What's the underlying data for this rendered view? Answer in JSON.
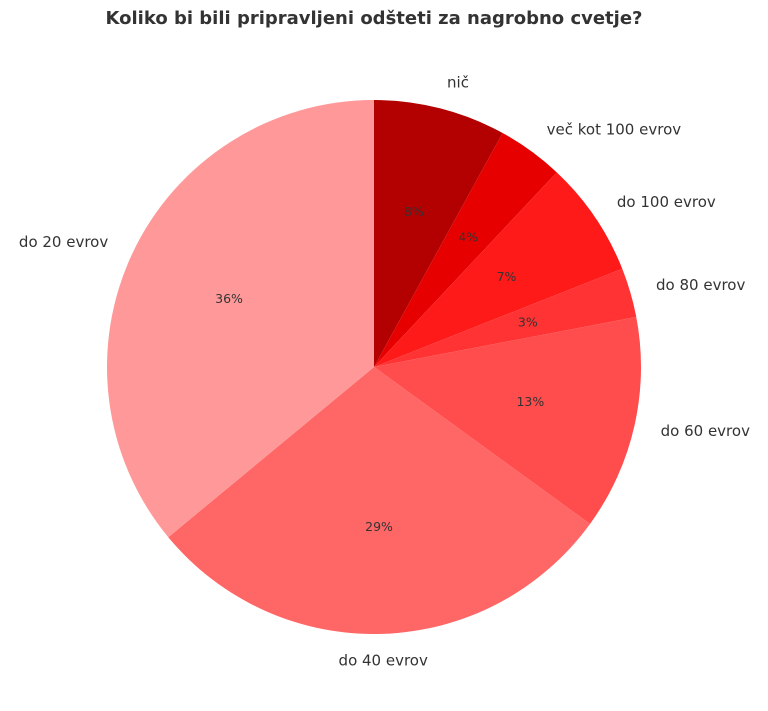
{
  "chart_data": {
    "type": "pie",
    "title": "Koliko bi bili pripravljeni odšteti za nagrobno cvetje?",
    "start_angle_deg": 90,
    "direction": "clockwise",
    "slices": [
      {
        "label": "nič",
        "value": 8,
        "pct_label": "8%",
        "color": "#b30000"
      },
      {
        "label": "več kot 100 evrov",
        "value": 4,
        "pct_label": "4%",
        "color": "#e60000"
      },
      {
        "label": "do 100 evrov",
        "value": 7,
        "pct_label": "7%",
        "color": "#ff1a1a"
      },
      {
        "label": "do 80 evrov",
        "value": 3,
        "pct_label": "3%",
        "color": "#ff3333"
      },
      {
        "label": "do 60 evrov",
        "value": 13,
        "pct_label": "13%",
        "color": "#ff4d4d"
      },
      {
        "label": "do 40 evrov",
        "value": 29,
        "pct_label": "29%",
        "color": "#ff6666"
      },
      {
        "label": "do 20 evrov",
        "value": 36,
        "pct_label": "36%",
        "color": "#ff9999"
      }
    ]
  }
}
